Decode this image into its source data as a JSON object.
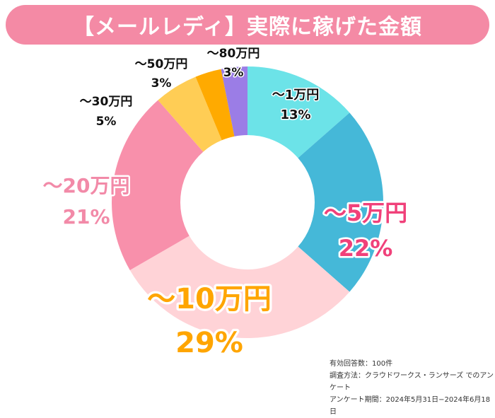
{
  "title": "【メールレディ】実際に稼げた金額",
  "chart_data": {
    "type": "donut",
    "title": "【メールレディ】実際に稼げた金額",
    "categories": [
      "～1万円",
      "～5万円",
      "～10万円",
      "～20万円",
      "～30万円",
      "～50万円",
      "～80万円"
    ],
    "values": [
      13,
      22,
      29,
      21,
      5,
      3,
      3
    ],
    "labels": [
      "13%",
      "22%",
      "29%",
      "21%",
      "5%",
      "3%",
      "3%"
    ],
    "colors": [
      "#6ce3e8",
      "#45b8d8",
      "#ffd3d7",
      "#f890ab",
      "#ffcd55",
      "#ffaa00",
      "#9b7de6"
    ],
    "label_colors": [
      "#111111",
      "#f0417a",
      "#ffa500",
      "#f28aa8",
      "#111111",
      "#111111",
      "#111111"
    ],
    "start": "top",
    "direction": "clockwise"
  },
  "footer": [
    "有効回答数：100件",
    "調査方法：クラウドワークス・ランサーズ でのアンケート",
    "アンケート期間：2024年5月31日−2024年6月18日"
  ]
}
